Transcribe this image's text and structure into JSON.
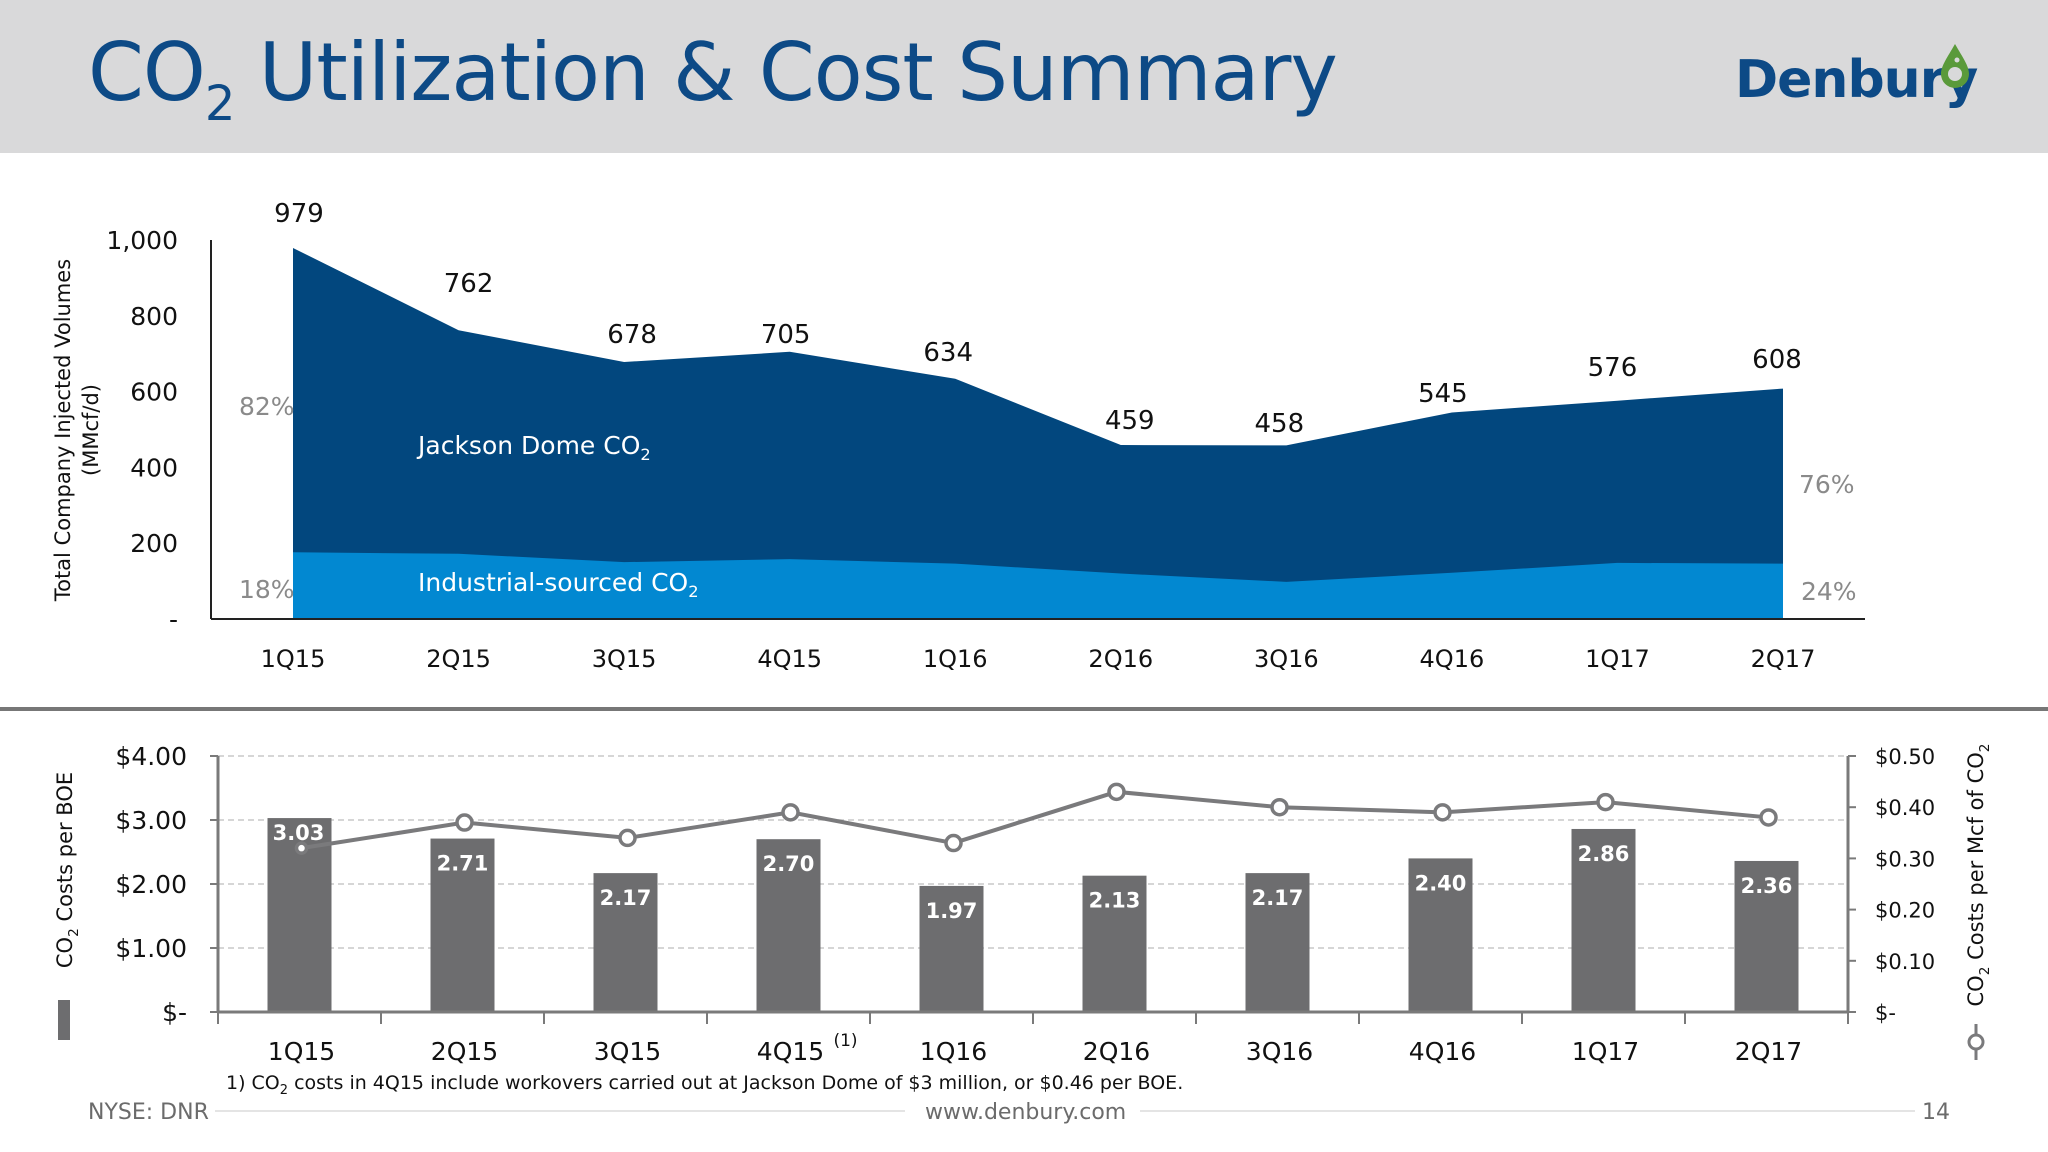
{
  "header": {
    "title_main": "CO",
    "title_sub": "2",
    "title_rest": " Utilization & Cost Summary",
    "logo": "Denbury"
  },
  "colors": {
    "jackson": "#02477e",
    "industrial": "#0288d1",
    "bar": "#6d6d6f",
    "line": "#7a7a7c",
    "title": "#0d4a86",
    "header_bg": "#d9d9da"
  },
  "chart_data": [
    {
      "type": "area",
      "stacked": true,
      "categories": [
        "1Q15",
        "2Q15",
        "3Q15",
        "4Q15",
        "1Q16",
        "2Q16",
        "3Q16",
        "4Q16",
        "1Q17",
        "2Q17"
      ],
      "series": [
        {
          "name": "Industrial-sourced CO2",
          "values": [
            176,
            172,
            150,
            158,
            146,
            120,
            98,
            122,
            148,
            146
          ]
        },
        {
          "name": "Jackson Dome CO2",
          "values": [
            803,
            590,
            528,
            547,
            488,
            339,
            360,
            423,
            428,
            462
          ]
        }
      ],
      "totals": [
        979,
        762,
        678,
        705,
        634,
        459,
        458,
        545,
        576,
        608
      ],
      "total_labels": [
        "979",
        "762",
        "678",
        "705",
        "634",
        "459",
        "458",
        "545",
        "576",
        "608"
      ],
      "ylabel_line1": "Total Company Injected Volumes",
      "ylabel_line2": "(MMcf/d)",
      "ylim": [
        0,
        1000
      ],
      "yticks": [
        "-",
        "200",
        "400",
        "600",
        "800",
        "1,000"
      ],
      "series_labels": {
        "jackson": "Jackson Dome CO",
        "industrial": "Industrial-sourced CO",
        "sub": "2"
      },
      "share_labels": {
        "start_jackson": "82%",
        "start_industrial": "18%",
        "end_jackson": "76%",
        "end_industrial": "24%"
      }
    },
    {
      "type": "bar",
      "categories": [
        "1Q15",
        "2Q15",
        "3Q15",
        "4Q15",
        "1Q16",
        "2Q16",
        "3Q16",
        "4Q16",
        "1Q17",
        "2Q17"
      ],
      "bar_series": {
        "name": "CO2 Costs per BOE",
        "values": [
          3.03,
          2.71,
          2.17,
          2.7,
          1.97,
          2.13,
          2.17,
          2.4,
          2.86,
          2.36
        ],
        "labels": [
          "3.03",
          "2.71",
          "2.17",
          "2.70",
          "1.97",
          "2.13",
          "2.17",
          "2.40",
          "2.86",
          "2.36"
        ]
      },
      "line_series": {
        "name": "CO2 Costs per Mcf of CO2",
        "values": [
          0.32,
          0.37,
          0.34,
          0.39,
          0.33,
          0.43,
          0.4,
          0.39,
          0.41,
          0.38
        ]
      },
      "y_left": {
        "ylim": [
          0,
          4
        ],
        "ticks": [
          "$-",
          "$1.00",
          "$2.00",
          "$3.00",
          "$4.00"
        ],
        "label_main": "CO",
        "label_sub": "2",
        "label_rest": " Costs per BOE"
      },
      "y_right": {
        "ylim": [
          0,
          0.5
        ],
        "ticks": [
          "$-",
          "$0.10",
          "$0.20",
          "$0.30",
          "$0.40",
          "$0.50"
        ],
        "label_main": "CO",
        "label_sub": "2",
        "label_rest": " Costs per Mcf of CO",
        "label_sub2": "2"
      },
      "annotation": {
        "category": "4Q15",
        "text": "(1)"
      }
    }
  ],
  "footnote": {
    "prefix": "1)    CO",
    "sub": "2",
    "rest": " costs in 4Q15 include workovers carried out at Jackson Dome of $3 million, or $0.46 per BOE."
  },
  "footer": {
    "ticker": "NYSE: DNR",
    "url": "www.denbury.com",
    "page": "14"
  }
}
